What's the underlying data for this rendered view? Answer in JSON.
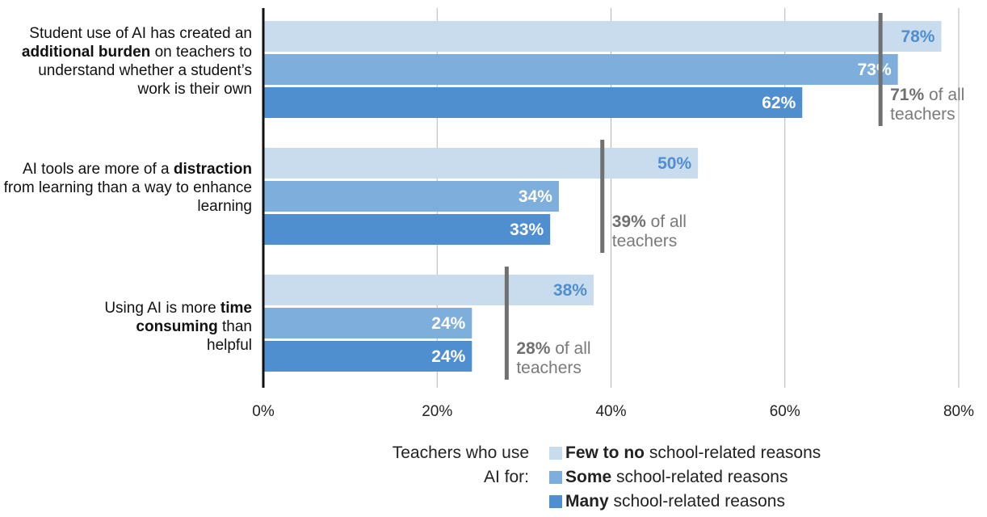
{
  "chart_data": {
    "type": "bar",
    "orientation": "horizontal",
    "categories": [
      {
        "parts": [
          "Student use of AI has created an ",
          "additional burden",
          " on teachers to understand whether a student’s work is their own"
        ]
      },
      {
        "parts": [
          "AI tools are more of a ",
          "distraction",
          " from learning than a way to enhance learning"
        ]
      },
      {
        "parts": [
          "Using AI is more ",
          "time consuming",
          " than helpful"
        ]
      }
    ],
    "series": [
      {
        "name_bold": "Few to no",
        "name_rest": " school-related reasons",
        "color": "#c9dcee",
        "label_color": "#4f8fcf",
        "values": [
          78,
          50,
          38
        ],
        "data_labels": [
          "78%",
          "50%",
          "38%"
        ]
      },
      {
        "name_bold": "Some",
        "name_rest": " school-related reasons",
        "color": "#7eaedc",
        "label_color": "#ffffff",
        "values": [
          73,
          34,
          24
        ],
        "data_labels": [
          "73%",
          "34%",
          "24%"
        ]
      },
      {
        "name_bold": "Many",
        "name_rest": " school-related reasons",
        "color": "#4f8fcf",
        "label_color": "#ffffff",
        "values": [
          62,
          33,
          24
        ],
        "data_labels": [
          "62%",
          "33%",
          "24%"
        ]
      }
    ],
    "reference": {
      "values": [
        71,
        39,
        28
      ],
      "labels_bold": [
        "71%",
        "39%",
        "28%"
      ],
      "labels_rest": [
        "of all",
        "of all",
        "of all"
      ],
      "labels_line2": [
        "teachers",
        "teachers",
        "teachers"
      ],
      "color": "#707070"
    },
    "x_ticks": [
      0,
      20,
      40,
      60,
      80
    ],
    "x_tick_labels": [
      "0%",
      "20%",
      "40%",
      "60%",
      "80%"
    ],
    "xlim": [
      0,
      80
    ],
    "grid": true,
    "legend": {
      "intro": "Teachers who use AI for:",
      "placement": "bottom-center"
    }
  }
}
